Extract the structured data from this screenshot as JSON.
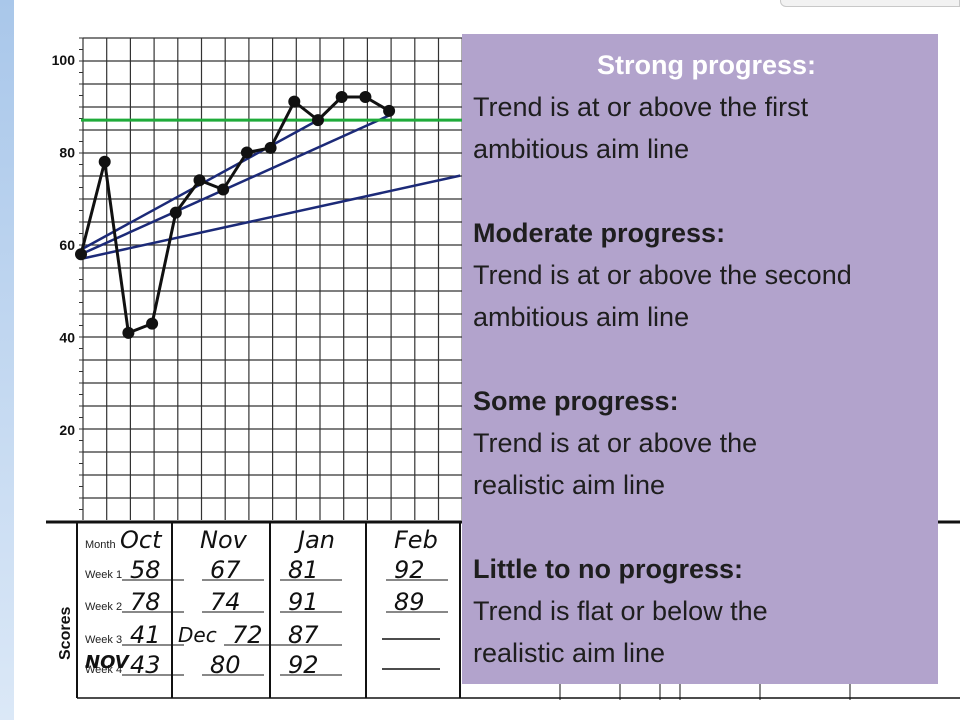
{
  "panel": {
    "strong_heading": "Strong progress:",
    "strong_text_1": "Trend is at or above the first",
    "strong_text_2": "ambitious aim line",
    "moderate_heading": "Moderate progress:",
    "moderate_text_1": "Trend is at or above the second",
    "moderate_text_2": "ambitious aim line",
    "some_heading": "Some progress:",
    "some_text_1": "Trend  is at or above the",
    "some_text_2": "realistic  aim line",
    "little_heading": "Little to no progress:",
    "little_text_1": "Trend is flat or below the",
    "little_text_2": "realistic aim line"
  },
  "chart_data": {
    "type": "line",
    "y_ticks": [
      100,
      80,
      60,
      40,
      20
    ],
    "ylim": [
      0,
      100
    ],
    "scores_label": "Scores",
    "series": [
      {
        "name": "",
        "points": [
          {
            "week": 1,
            "value": 58
          },
          {
            "week": 2,
            "value": 78
          },
          {
            "week": 3,
            "value": 41
          },
          {
            "week": 4,
            "value": 43
          },
          {
            "week": 5,
            "value": 67
          },
          {
            "week": 6,
            "value": 74
          },
          {
            "week": 7,
            "value": 72
          },
          {
            "week": 8,
            "value": 80
          },
          {
            "week": 9,
            "value": 81
          },
          {
            "week": 10,
            "value": 91
          },
          {
            "week": 11,
            "value": 87
          },
          {
            "week": 12,
            "value": 92
          },
          {
            "week": 13,
            "value": 92
          },
          {
            "week": 14,
            "value": 89
          }
        ]
      }
    ],
    "goal_line": {
      "value": 87,
      "color": "#1fab3a"
    },
    "aim_lines": [
      {
        "from": [
          1,
          59
        ],
        "to": [
          11,
          87
        ]
      },
      {
        "from": [
          1,
          58
        ],
        "to": [
          14,
          88
        ]
      },
      {
        "from": [
          1,
          57
        ],
        "to": [
          17,
          75
        ]
      }
    ],
    "colors": {
      "line": "#111111",
      "aim": "#1c2a78",
      "goal": "#1fab3a",
      "grid": "#333333"
    },
    "table": {
      "row_labels": [
        "Month",
        "Week 1",
        "Week 2",
        "Week 3",
        "Week 4"
      ],
      "months": [
        "Oct",
        "Nov",
        "Jan",
        "Feb"
      ],
      "extra_labels": {
        "nov_week4_tag": "NOV",
        "dec_week3_tag": "Dec"
      },
      "columns": [
        [
          "58",
          "78",
          "41",
          "43"
        ],
        [
          "67",
          "74",
          "72",
          "80"
        ],
        [
          "81",
          "91",
          "87",
          "92"
        ],
        [
          "92",
          "89",
          "",
          ""
        ]
      ]
    }
  }
}
